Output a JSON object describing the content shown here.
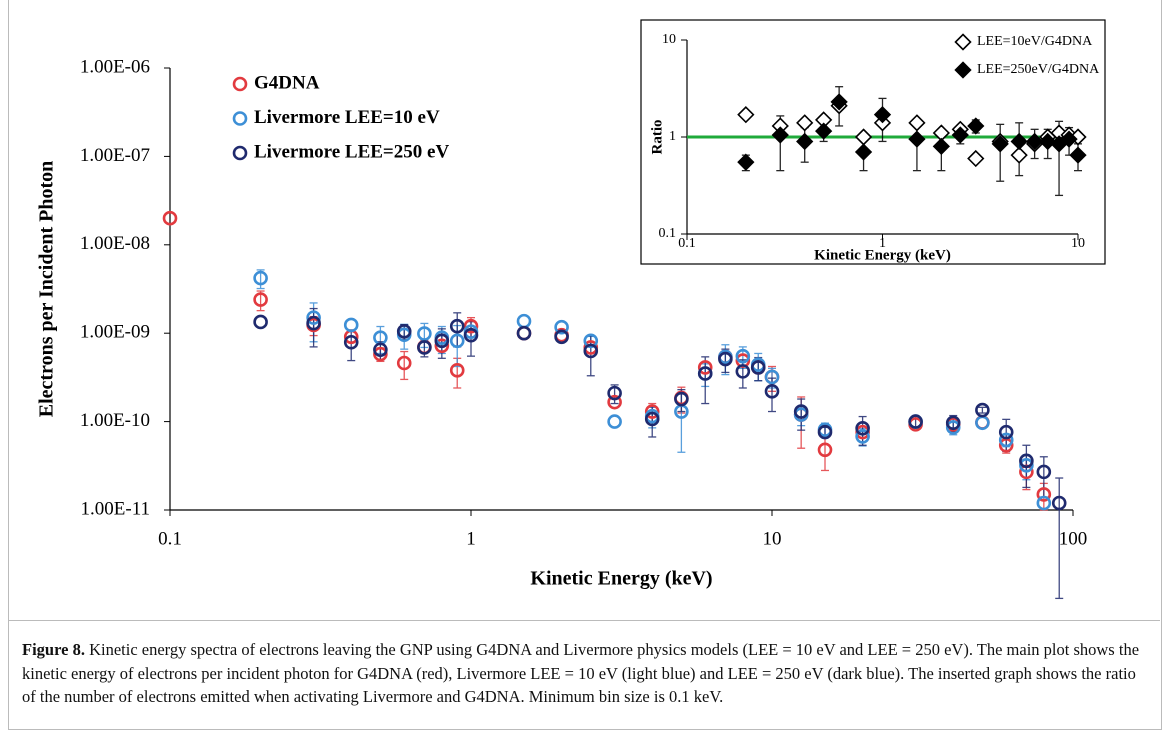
{
  "chart_data": [
    {
      "type": "scatter",
      "x_label": "Kinetic Energy (keV)",
      "y_label": "Electrons per Incident Photon",
      "xscale": "log",
      "yscale": "log",
      "xlim": [
        0.1,
        100
      ],
      "ylim": [
        1e-11,
        1e-06
      ],
      "xticks": [
        0.1,
        1,
        10,
        100
      ],
      "yticks": [
        {
          "value": 1e-11,
          "label": "1.00E-11"
        },
        {
          "value": 1e-10,
          "label": "1.00E-10"
        },
        {
          "value": 1e-09,
          "label": "1.00E-09"
        },
        {
          "value": 1e-08,
          "label": "1.00E-08"
        },
        {
          "value": 1e-07,
          "label": "1.00E-07"
        },
        {
          "value": 1e-06,
          "label": "1.00E-06"
        }
      ],
      "legend": "upper left",
      "x": [
        0.1,
        0.2,
        0.3,
        0.4,
        0.5,
        0.6,
        0.7,
        0.8,
        0.9,
        1,
        1.5,
        2,
        2.5,
        3,
        4,
        5,
        6,
        7,
        8,
        9,
        10,
        12.5,
        15,
        20,
        30,
        40,
        50,
        60,
        70,
        80,
        90
      ],
      "series": [
        {
          "name": "G4DNA",
          "color": "#e23a3f",
          "marker": "open-circle",
          "values": [
            2e-08,
            2.4e-09,
            1.24e-09,
            9.1e-10,
            5.8e-10,
            4.6e-10,
            7e-10,
            7.2e-10,
            3.8e-10,
            1.2e-09,
            1e-09,
            9.5e-10,
            6.9e-10,
            1.66e-10,
            1.3e-10,
            1.85e-10,
            4.1e-10,
            5.4e-10,
            4.9e-10,
            4.1e-10,
            3.2e-10,
            1.2e-10,
            4.8e-11,
            7.6e-11,
            9.3e-11,
            9.3e-11,
            9.8e-11,
            5.4e-11,
            2.7e-11,
            1.5e-11,
            null
          ],
          "errors": [
            null,
            6e-10,
            3e-10,
            null,
            1e-10,
            1.6e-10,
            null,
            null,
            1.4e-10,
            3e-10,
            null,
            null,
            null,
            null,
            3e-11,
            6e-11,
            null,
            null,
            null,
            null,
            1e-10,
            7e-11,
            2e-11,
            null,
            null,
            null,
            null,
            1e-11,
            1e-11,
            5e-12,
            null
          ]
        },
        {
          "name": "Livermore LEE=10 eV",
          "color": "#3d8fd6",
          "marker": "open-circle",
          "values": [
            null,
            4.2e-09,
            1.5e-09,
            1.24e-09,
            8.9e-10,
            9.6e-10,
            9.9e-10,
            8.9e-10,
            8.2e-10,
            1.04e-09,
            1.37e-09,
            1.17e-09,
            8.2e-10,
            1e-10,
            1.15e-10,
            1.3e-10,
            3.5e-10,
            5.4e-10,
            5.5e-10,
            4.4e-10,
            3.2e-10,
            1.2e-10,
            8.1e-11,
            6.8e-11,
            1e-10,
            8.6e-11,
            9.7e-11,
            6.2e-11,
            3.2e-11,
            1.2e-11,
            null
          ],
          "errors": [
            null,
            1e-09,
            7e-10,
            null,
            3e-10,
            3e-10,
            3e-10,
            3e-10,
            4e-10,
            null,
            null,
            null,
            1e-10,
            null,
            3e-11,
            8.5e-11,
            1e-10,
            2e-10,
            1.5e-10,
            1.5e-10,
            8e-11,
            3e-11,
            1.5e-11,
            1.5e-11,
            null,
            1.5e-11,
            null,
            1e-11,
            1e-11,
            null,
            null
          ]
        },
        {
          "name": "Livermore LEE=250 eV",
          "color": "#1f2a6e",
          "marker": "open-circle",
          "values": [
            null,
            1.34e-09,
            1.3e-09,
            7.9e-10,
            6.5e-10,
            1.05e-09,
            6.9e-10,
            8.2e-10,
            1.2e-09,
            9.5e-10,
            1e-09,
            9.1e-10,
            6.3e-10,
            2.1e-10,
            1.07e-10,
            1.8e-10,
            3.5e-10,
            5.1e-10,
            3.7e-10,
            4.1e-10,
            2.2e-10,
            1.3e-10,
            7.6e-11,
            8.4e-11,
            1e-10,
            9.7e-11,
            1.35e-10,
            7.6e-11,
            3.6e-11,
            2.7e-11,
            1.2e-11
          ],
          "errors": [
            null,
            null,
            6e-10,
            3e-10,
            1.5e-10,
            2e-10,
            1.5e-10,
            3e-10,
            5e-10,
            4e-10,
            null,
            null,
            3e-10,
            5e-11,
            4e-11,
            5e-11,
            1.9e-10,
            1.5e-10,
            1.3e-10,
            1.2e-10,
            9e-11,
            5e-11,
            1e-11,
            3e-11,
            1.5e-11,
            2e-11,
            1e-11,
            3e-11,
            1.8e-11,
            1.3e-11,
            1.1e-11
          ]
        }
      ]
    },
    {
      "type": "scatter",
      "x_label": "Kinetic Energy (keV)",
      "y_label": "Ratio",
      "xscale": "log",
      "yscale": "log",
      "xlim": [
        0.1,
        10
      ],
      "ylim": [
        0.1,
        10
      ],
      "xticks": [
        0.1,
        1,
        10
      ],
      "yticks": [
        0.1,
        1,
        10
      ],
      "legend": "upper right",
      "reference_line": {
        "value": 1,
        "color": "#1faa3a"
      },
      "x": [
        0.2,
        0.3,
        0.4,
        0.5,
        0.6,
        0.8,
        1,
        1.5,
        2,
        2.5,
        3,
        4,
        5,
        6,
        7,
        8,
        9,
        10
      ],
      "series": [
        {
          "name": "LEE=10eV/G4DNA",
          "color": "#000000",
          "marker": "open-diamond",
          "values": [
            1.7,
            1.3,
            1.4,
            1.5,
            2.1,
            1.0,
            1.4,
            1.4,
            1.1,
            1.2,
            0.6,
            0.9,
            0.65,
            0.85,
            1.0,
            1.1,
            1.05,
            1.0
          ]
        },
        {
          "name": "LEE=250eV/G4DNA",
          "color": "#000000",
          "marker": "filled-diamond",
          "values": [
            0.55,
            1.05,
            0.9,
            1.15,
            2.3,
            0.7,
            1.7,
            0.95,
            0.8,
            1.05,
            1.3,
            0.85,
            0.9,
            0.9,
            0.9,
            0.85,
            0.95,
            0.65
          ],
          "errors": [
            0.1,
            0.6,
            0.35,
            0.25,
            1.0,
            0.25,
            0.8,
            0.5,
            0.35,
            0.2,
            0.2,
            0.5,
            0.5,
            0.3,
            0.3,
            0.6,
            0.3,
            0.2
          ]
        }
      ]
    }
  ],
  "caption": {
    "label": "Figure 8.",
    "text": "Kinetic energy spectra of electrons leaving the GNP using G4DNA and Livermore physics models (LEE = 10 eV and LEE = 250 eV). The main plot shows the kinetic energy of electrons per incident photon for G4DNA (red), Livermore LEE = 10 eV (light blue) and LEE = 250 eV (dark blue). The inserted graph shows the ratio of the number of electrons emitted when activating Livermore and G4DNA. Minimum bin size is 0.1 keV."
  }
}
